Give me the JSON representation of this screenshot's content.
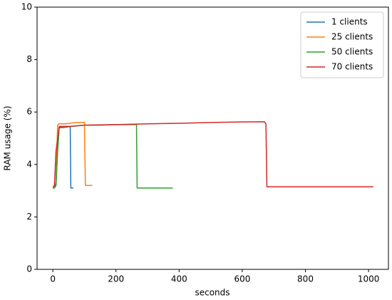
{
  "chart_data": {
    "type": "line",
    "xlabel": "seconds",
    "ylabel": "RAM usage (%)",
    "xlim": [
      -50,
      1063
    ],
    "ylim": [
      0,
      10
    ],
    "xticks": [
      0,
      200,
      400,
      600,
      800,
      1000
    ],
    "yticks": [
      0,
      2,
      4,
      6,
      8,
      10
    ],
    "grid": false,
    "legend": "upper right",
    "series": [
      {
        "name": "1 clients",
        "color": "#1f77b4",
        "x": [
          0,
          5,
          10,
          15,
          20,
          30,
          40,
          50,
          55,
          57,
          60,
          65
        ],
        "values": [
          3.1,
          3.1,
          3.2,
          4.5,
          5.4,
          5.45,
          5.45,
          5.45,
          5.45,
          3.1,
          3.1,
          3.1
        ]
      },
      {
        "name": "25 clients",
        "color": "#ff7f0e",
        "x": [
          0,
          5,
          10,
          15,
          20,
          40,
          60,
          80,
          100,
          103,
          110,
          125
        ],
        "values": [
          3.15,
          3.15,
          3.3,
          5.5,
          5.55,
          5.55,
          5.58,
          5.6,
          5.6,
          3.2,
          3.2,
          3.2
        ]
      },
      {
        "name": "50 clients",
        "color": "#2ca02c",
        "x": [
          0,
          5,
          10,
          15,
          20,
          30,
          60,
          100,
          150,
          200,
          250,
          265,
          267,
          300,
          350,
          380
        ],
        "values": [
          3.1,
          3.1,
          3.3,
          4.5,
          5.4,
          5.4,
          5.45,
          5.5,
          5.5,
          5.52,
          5.52,
          5.52,
          3.1,
          3.1,
          3.1,
          3.1
        ]
      },
      {
        "name": "70 clients",
        "color": "#d62728",
        "x": [
          0,
          5,
          10,
          20,
          50,
          100,
          200,
          300,
          400,
          500,
          600,
          670,
          675,
          678,
          700,
          800,
          900,
          1000,
          1015
        ],
        "values": [
          3.15,
          3.2,
          4.5,
          5.45,
          5.45,
          5.5,
          5.52,
          5.55,
          5.57,
          5.6,
          5.62,
          5.63,
          5.55,
          3.15,
          3.15,
          3.15,
          3.15,
          3.15,
          3.15
        ]
      }
    ]
  }
}
